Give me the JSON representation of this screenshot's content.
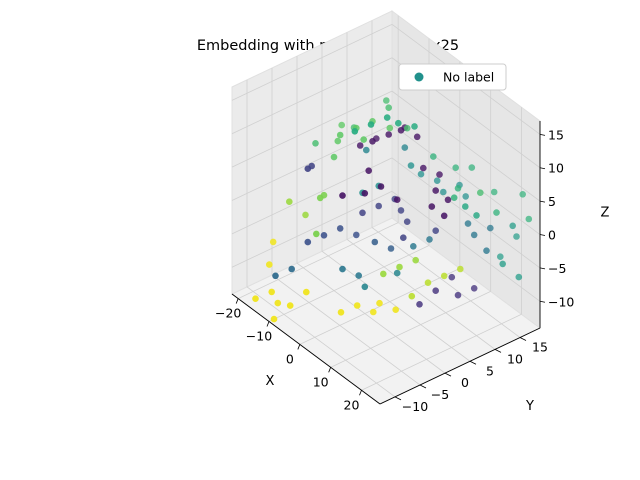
{
  "chart_data": {
    "type": "scatter3d",
    "title": "Embedding with pcastd10perplex25",
    "xlabel": "X",
    "ylabel": "Y",
    "zlabel": "Z",
    "xlim": [
      -22,
      26
    ],
    "ylim": [
      -13,
      19
    ],
    "zlim": [
      -14,
      17
    ],
    "xticks": [
      -20,
      -10,
      0,
      10,
      20
    ],
    "yticks": [
      -10,
      -5,
      0,
      5,
      10,
      15
    ],
    "zticks": [
      -10,
      -5,
      0,
      5,
      10,
      15
    ],
    "grid": true,
    "legend": {
      "position": "top-right",
      "entries": [
        {
          "label": "No label",
          "color": "#21918c"
        }
      ]
    },
    "colormap": "viridis",
    "color_note": "point color in 0..1 along viridis",
    "points": [
      [
        2,
        0,
        15,
        0.62
      ],
      [
        4,
        2,
        16,
        0.62
      ],
      [
        6,
        3,
        15.5,
        0.62
      ],
      [
        8,
        5,
        15,
        0.62
      ],
      [
        0,
        -2,
        14,
        0.62
      ],
      [
        -6,
        2,
        11,
        0.75
      ],
      [
        -4,
        4,
        12,
        0.75
      ],
      [
        -2,
        1,
        11,
        0.75
      ],
      [
        -8,
        0,
        10,
        0.75
      ],
      [
        0,
        5,
        12,
        0.75
      ],
      [
        -12,
        2,
        7,
        0.75
      ],
      [
        -14,
        4,
        8,
        0.75
      ],
      [
        -10,
        0,
        6,
        0.75
      ],
      [
        6,
        10,
        8,
        0.65
      ],
      [
        10,
        12,
        7,
        0.65
      ],
      [
        14,
        10,
        6,
        0.65
      ],
      [
        16,
        8,
        6,
        0.65
      ],
      [
        18,
        9,
        5,
        0.6
      ],
      [
        20,
        10,
        4,
        0.6
      ],
      [
        12,
        14,
        7,
        0.65
      ],
      [
        -2,
        6,
        10,
        0.05
      ],
      [
        0,
        8,
        11,
        0.05
      ],
      [
        2,
        6,
        12,
        0.05
      ],
      [
        4,
        8,
        11,
        0.05
      ],
      [
        -4,
        4,
        9,
        0.05
      ],
      [
        -6,
        6,
        8,
        0.05
      ],
      [
        -8,
        4,
        7,
        0.05
      ],
      [
        -2,
        2,
        6,
        0.05
      ],
      [
        6,
        8,
        7,
        0.05
      ],
      [
        8,
        10,
        6,
        0.05
      ],
      [
        10,
        8,
        5,
        0.05
      ],
      [
        12,
        6,
        4,
        0.05
      ],
      [
        14,
        8,
        5,
        0.05
      ],
      [
        16,
        6,
        4,
        0.05
      ],
      [
        0,
        0,
        4,
        0.05
      ],
      [
        2,
        2,
        5,
        0.05
      ],
      [
        -4,
        -2,
        3,
        0.05
      ],
      [
        4,
        4,
        3,
        0.05
      ],
      [
        -12,
        -4,
        5,
        0.2
      ],
      [
        -14,
        -2,
        4,
        0.2
      ],
      [
        2,
        10,
        4,
        0.5
      ],
      [
        4,
        12,
        3,
        0.5
      ],
      [
        6,
        12,
        2,
        0.5
      ],
      [
        8,
        14,
        3,
        0.5
      ],
      [
        10,
        14,
        2,
        0.5
      ],
      [
        -2,
        4,
        0,
        0.2
      ],
      [
        0,
        6,
        1,
        0.2
      ],
      [
        2,
        6,
        0,
        0.2
      ],
      [
        4,
        6,
        -1,
        0.2
      ],
      [
        -4,
        2,
        -1,
        0.2
      ],
      [
        6,
        4,
        -2,
        0.2
      ],
      [
        10,
        8,
        -1,
        0.2
      ],
      [
        -8,
        0,
        -4,
        0.25
      ],
      [
        -10,
        -2,
        -5,
        0.25
      ],
      [
        -12,
        -4,
        -6,
        0.25
      ],
      [
        -6,
        2,
        -5,
        0.25
      ],
      [
        0,
        2,
        -4,
        0.3
      ],
      [
        2,
        4,
        -5,
        0.3
      ],
      [
        6,
        6,
        -4,
        0.4
      ],
      [
        8,
        8,
        -3,
        0.4
      ],
      [
        -14,
        -6,
        -10,
        0.35
      ],
      [
        -16,
        -8,
        -11,
        0.35
      ],
      [
        -4,
        -2,
        -8,
        0.4
      ],
      [
        -2,
        0,
        -9,
        0.4
      ],
      [
        0,
        0,
        -10,
        0.45
      ],
      [
        4,
        4,
        -8,
        0.45
      ],
      [
        14,
        12,
        0,
        0.4
      ],
      [
        16,
        12,
        -1,
        0.4
      ],
      [
        18,
        14,
        0,
        0.4
      ],
      [
        20,
        12,
        -2,
        0.4
      ],
      [
        22,
        16,
        1,
        0.55
      ],
      [
        22,
        14,
        -4,
        0.55
      ],
      [
        24,
        16,
        -6,
        0.55
      ],
      [
        20,
        18,
        -2,
        0.55
      ],
      [
        18,
        16,
        -5,
        0.55
      ],
      [
        12,
        10,
        -8,
        0.15
      ],
      [
        14,
        10,
        -10,
        0.15
      ],
      [
        10,
        8,
        -10,
        0.15
      ],
      [
        8,
        6,
        -12,
        0.15
      ],
      [
        16,
        12,
        -9,
        0.15
      ],
      [
        -18,
        -4,
        -2,
        0.85
      ],
      [
        -16,
        -2,
        -4,
        0.85
      ],
      [
        -20,
        -6,
        -8,
        0.98
      ],
      [
        -18,
        -8,
        -10,
        0.98
      ],
      [
        -14,
        -10,
        -12,
        0.98
      ],
      [
        -12,
        -10,
        -13,
        0.98
      ],
      [
        -10,
        -12,
        -14,
        0.98
      ],
      [
        -8,
        -10,
        -12,
        0.98
      ],
      [
        -16,
        -12,
        -13,
        0.98
      ],
      [
        -6,
        -8,
        -10,
        0.98
      ],
      [
        4,
        -4,
        -10,
        0.98
      ],
      [
        6,
        -2,
        -11,
        0.98
      ],
      [
        8,
        -2,
        -9,
        0.98
      ],
      [
        10,
        0,
        -10,
        0.98
      ],
      [
        2,
        -6,
        -11,
        0.98
      ],
      [
        12,
        2,
        -8,
        0.9
      ],
      [
        14,
        4,
        -6,
        0.9
      ],
      [
        16,
        6,
        -5,
        0.9
      ],
      [
        18,
        8,
        -4,
        0.9
      ],
      [
        10,
        4,
        -4,
        0.85
      ],
      [
        6,
        0,
        -6,
        0.85
      ],
      [
        8,
        2,
        -5,
        0.85
      ],
      [
        -8,
        -4,
        2,
        0.8
      ],
      [
        -10,
        -2,
        1,
        0.8
      ],
      [
        -6,
        -6,
        -2,
        0.8
      ],
      [
        -4,
        2,
        2,
        0.5
      ],
      [
        -2,
        4,
        3,
        0.5
      ],
      [
        2,
        8,
        6,
        0.5
      ],
      [
        0,
        8,
        8,
        0.45
      ],
      [
        -6,
        4,
        7,
        0.45
      ],
      [
        20,
        14,
        3,
        0.65
      ],
      [
        24,
        18,
        2,
        0.65
      ],
      [
        16,
        16,
        4,
        0.65
      ],
      [
        22,
        18,
        5,
        0.65
      ],
      [
        18,
        12,
        6,
        0.7
      ],
      [
        -10,
        4,
        9,
        0.7
      ],
      [
        -16,
        0,
        6,
        0.7
      ],
      [
        -6,
        8,
        13,
        0.7
      ],
      [
        -2,
        6,
        14,
        0.7
      ],
      [
        4,
        6,
        13,
        0.7
      ]
    ]
  }
}
